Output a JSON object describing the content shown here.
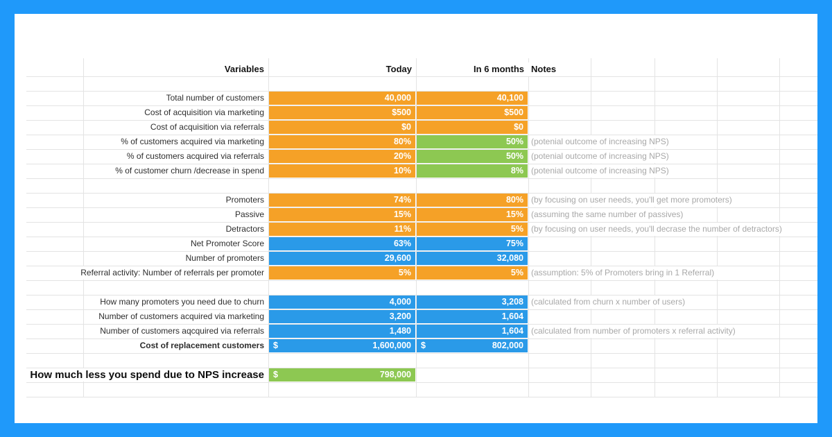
{
  "palette": {
    "frame": "#1f99fa",
    "page": "#ffffff",
    "orange": "#f5a127",
    "green": "#8dc852",
    "blue": "#2a9ae8",
    "gridline": "#e3e3e3",
    "label": "#2d2d2d",
    "header": "#141414",
    "note": "#a8a8a8",
    "valuetext": "#ffffff"
  },
  "header": {
    "variables": "Variables",
    "today": "Today",
    "in6": "In 6 months",
    "notes": "Notes"
  },
  "rows": [
    {
      "label": "Total number of customers",
      "today": "40,000",
      "in6": "40,100",
      "note": ""
    },
    {
      "label": "Cost of acquisition via marketing",
      "today": "$500",
      "in6": "$500",
      "note": ""
    },
    {
      "label": "Cost of acquisition via referrals",
      "today": "$0",
      "in6": "$0",
      "note": ""
    },
    {
      "label": "% of customers acquired via marketing",
      "today": "80%",
      "in6": "50%",
      "note": "(potenial outcome of increasing NPS)"
    },
    {
      "label": "% of customers acquired via referrals",
      "today": "20%",
      "in6": "50%",
      "note": "(potenial outcome of increasing NPS)"
    },
    {
      "label": "%  of customer churn /decrease in spend",
      "today": "10%",
      "in6": "8%",
      "note": "(potenial outcome of increasing NPS)"
    },
    {
      "label": "Promoters",
      "today": "74%",
      "in6": "80%",
      "note": "(by focusing on user needs, you'll get more promoters)"
    },
    {
      "label": "Passive",
      "today": "15%",
      "in6": "15%",
      "note": "(assuming the same number of passives)"
    },
    {
      "label": "Detractors",
      "today": "11%",
      "in6": "5%",
      "note": "(by focusing on user needs, you'll decrase the number of detractors)"
    },
    {
      "label": "Net Promoter Score",
      "today": "63%",
      "in6": "75%",
      "note": ""
    },
    {
      "label": "Number of promoters",
      "today": "29,600",
      "in6": "32,080",
      "note": ""
    },
    {
      "label": "Referral activity: Number of referrals per promoter",
      "today": "5%",
      "in6": "5%",
      "note": "(assumption: 5% of Promoters bring in 1 Referral)"
    },
    {
      "label": "How many promoters you need due to churn",
      "today": "4,000",
      "in6": "3,208",
      "note": "(calculated from churn x number of users)"
    },
    {
      "label": "Number of customers acquired via marketing",
      "today": "3,200",
      "in6": "1,604",
      "note": ""
    },
    {
      "label": "Number of customers aqcquired via referrals",
      "today": "1,480",
      "in6": "1,604",
      "note": "(calculated from number of promoters x referral activity)"
    },
    {
      "label": "Cost of replacement customers",
      "today_currency": "$",
      "today": "1,600,000",
      "in6_currency": "$",
      "in6": "802,000",
      "note": ""
    },
    {
      "label": "How much less you spend due to NPS increase",
      "today_currency": "$",
      "today": "798,000",
      "note": ""
    }
  ]
}
